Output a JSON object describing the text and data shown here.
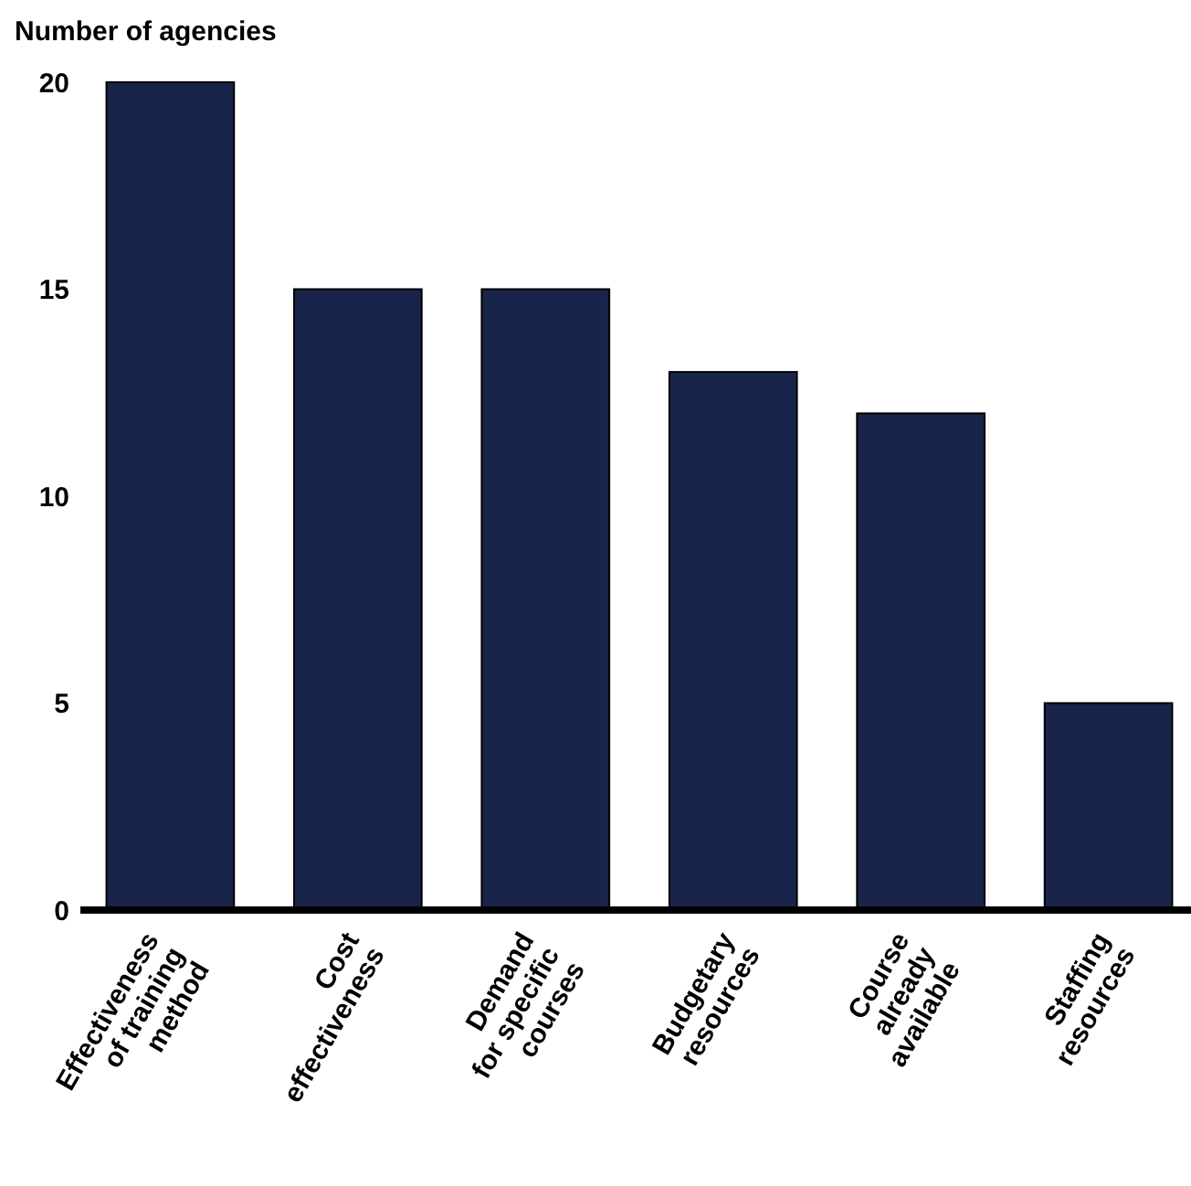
{
  "chart_data": {
    "type": "bar",
    "ylabel": "Number of agencies",
    "categories": [
      "Effectiveness\nof training\nmethod",
      "Cost\neffectiveness",
      "Demand\nfor specific\ncourses",
      "Budgetary\nresources",
      "Course\nalready\navailable",
      "Staffing\nresources"
    ],
    "values": [
      20,
      15,
      15,
      13,
      12,
      5
    ],
    "color": "#18244a",
    "ylim": [
      0,
      20
    ],
    "yticks": [
      0,
      5,
      10,
      15,
      20
    ],
    "grid": false
  }
}
